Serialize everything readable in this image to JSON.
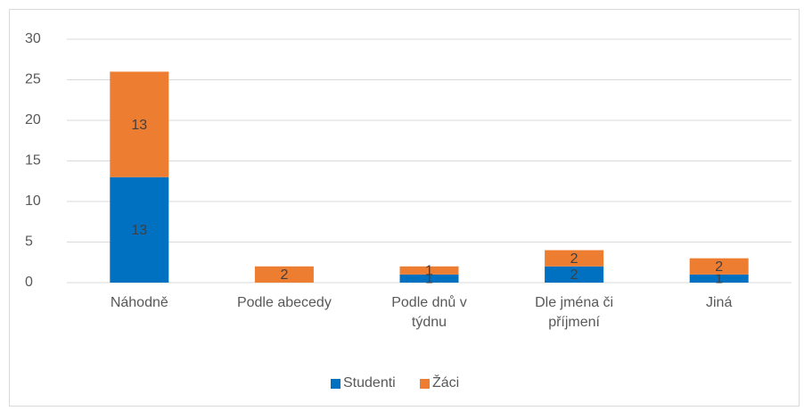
{
  "chart_data": {
    "type": "stacked_bar",
    "categories": [
      "Náhodně",
      "Podle abecedy",
      "Podle dnů v týdnu",
      "Dle jména či příjmení",
      "Jiná"
    ],
    "series": [
      {
        "name": "Studenti",
        "color": "#0070c0",
        "values": [
          13,
          0,
          1,
          2,
          1
        ]
      },
      {
        "name": "Žáci",
        "color": "#ed7d31",
        "values": [
          13,
          2,
          1,
          2,
          2
        ]
      }
    ],
    "ylim": [
      0,
      30
    ],
    "yticks": [
      0,
      5,
      10,
      15,
      20,
      25,
      30
    ],
    "grid": true,
    "legend": "bottom"
  }
}
